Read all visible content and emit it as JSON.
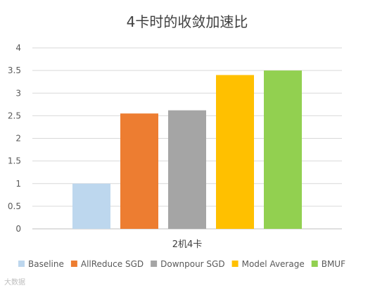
{
  "chart_data": {
    "type": "bar",
    "title": "4卡时的收敛加速比",
    "xlabel": "",
    "ylabel": "",
    "categories": [
      "2机4卡"
    ],
    "series": [
      {
        "name": "Baseline",
        "values": [
          1.0
        ],
        "color": "#bdd7ee"
      },
      {
        "name": "AllReduce SGD",
        "values": [
          2.55
        ],
        "color": "#ed7d31"
      },
      {
        "name": "Downpour SGD",
        "values": [
          2.62
        ],
        "color": "#a5a5a5"
      },
      {
        "name": "Model Average",
        "values": [
          3.4
        ],
        "color": "#ffc000"
      },
      {
        "name": "BMUF",
        "values": [
          3.5
        ],
        "color": "#92d050"
      }
    ],
    "ylim": [
      0,
      4
    ],
    "yticks": [
      "0",
      "0.5",
      "1",
      "1.5",
      "2",
      "2.5",
      "3",
      "3.5",
      "4"
    ],
    "grid": true,
    "legend": "bottom"
  },
  "watermark": "大数据"
}
